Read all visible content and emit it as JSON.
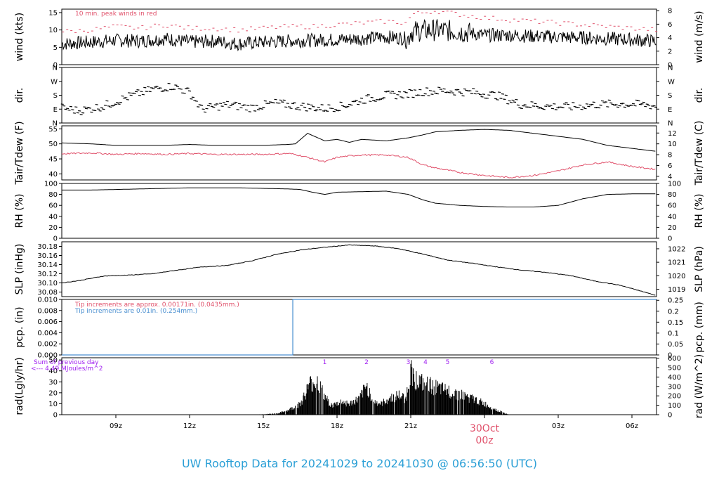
{
  "title": "UW Rooftop Data for 20241029  to  20241030 @ 06:56:50  (UTC)",
  "colors": {
    "title": "#2a9fd6",
    "red": "#e0506a",
    "blue": "#4a8fd0",
    "purple": "#a020f0",
    "black": "#000000"
  },
  "x_axis": {
    "range_hours": [
      6.8,
      31.0
    ],
    "ticks": [
      {
        "h": 9,
        "label": "09z"
      },
      {
        "h": 12,
        "label": "12z"
      },
      {
        "h": 15,
        "label": "15z"
      },
      {
        "h": 18,
        "label": "18z"
      },
      {
        "h": 21,
        "label": "21z"
      },
      {
        "h": 24,
        "label": ""
      },
      {
        "h": 27,
        "label": "03z"
      },
      {
        "h": 30,
        "label": "06z"
      }
    ],
    "midnight_date": "30Oct",
    "midnight_hour": "00z"
  },
  "chart_data": [
    {
      "type": "line",
      "id": "wind",
      "ylabel_left": "wind (kts)",
      "ylabel_right": "wind (m/s)",
      "ylim": [
        0,
        16
      ],
      "ticks_left": [
        {
          "v": 0,
          "label": "0"
        },
        {
          "v": 5,
          "label": "5"
        },
        {
          "v": 10,
          "label": "10"
        },
        {
          "v": 15,
          "label": "15"
        }
      ],
      "ticks_right": [
        {
          "v": 0,
          "label": "0"
        },
        {
          "v": 3.888,
          "label": "2"
        },
        {
          "v": 7.776,
          "label": "4"
        },
        {
          "v": 11.664,
          "label": "6"
        },
        {
          "v": 15.552,
          "label": "8"
        }
      ],
      "annotation": "10 min. peak winds in red",
      "series": [
        {
          "style": "line",
          "x": [
            6.8,
            8,
            9,
            10,
            11,
            12,
            13,
            14,
            15,
            16,
            17,
            18,
            19,
            20,
            20.9,
            21,
            21.5,
            22,
            23,
            24,
            25,
            26,
            27,
            28,
            29,
            30,
            31
          ],
          "y": [
            6,
            6.5,
            7,
            6.8,
            7.5,
            6.5,
            6.8,
            6,
            6.5,
            6.8,
            7,
            7.2,
            7.5,
            8,
            7.5,
            9.5,
            9.8,
            10,
            9.5,
            8.5,
            8.5,
            8.2,
            8,
            7.8,
            7.5,
            7.2,
            6.8
          ]
        },
        {
          "style": "points",
          "x": [
            6.8,
            8,
            9,
            10,
            11,
            12,
            13,
            14,
            15,
            16,
            17,
            18,
            19,
            20,
            20.9,
            21,
            21.5,
            22,
            23,
            24,
            25,
            26,
            27,
            28,
            29,
            30,
            31
          ],
          "y": [
            9.5,
            10,
            11,
            10.5,
            11.5,
            10.5,
            10.5,
            10,
            10.5,
            11,
            11,
            11.5,
            12,
            12.5,
            12,
            14.5,
            15,
            15.5,
            14.5,
            13.5,
            13,
            12.5,
            12,
            11.5,
            11,
            10.5,
            10
          ]
        }
      ]
    },
    {
      "type": "scatter",
      "id": "dir",
      "ylabel_left": "dir.",
      "ylabel_right": "dir.",
      "ylim": [
        0,
        360
      ],
      "ticks_left": [
        {
          "v": 0,
          "label": "N"
        },
        {
          "v": 90,
          "label": "E"
        },
        {
          "v": 180,
          "label": "S"
        },
        {
          "v": 270,
          "label": "W"
        },
        {
          "v": 360,
          "label": "N"
        }
      ],
      "ticks_right": [
        {
          "v": 0,
          "label": "N"
        },
        {
          "v": 90,
          "label": "E"
        },
        {
          "v": 180,
          "label": "S"
        },
        {
          "v": 270,
          "label": "W"
        },
        {
          "v": 360,
          "label": "N"
        }
      ],
      "series": [
        {
          "style": "points",
          "x": [
            6.8,
            7.5,
            8.5,
            9.5,
            10.5,
            11.3,
            12,
            12.5,
            13.5,
            14.5,
            15.5,
            16.5,
            17.5,
            18.2,
            19,
            20,
            20.9,
            21.5,
            22.5,
            23.5,
            24.5,
            25.5,
            26.5,
            27.5,
            28.5,
            29.5,
            30.5,
            31
          ],
          "y": [
            100,
            80,
            110,
            170,
            220,
            240,
            200,
            90,
            120,
            100,
            130,
            110,
            95,
            110,
            150,
            180,
            190,
            205,
            210,
            200,
            180,
            120,
            110,
            105,
            120,
            125,
            120,
            110
          ]
        }
      ]
    },
    {
      "type": "line",
      "id": "temp",
      "ylabel_left": "Tair/Tdew (F)",
      "ylabel_right": "Tair/Tdew (C)",
      "ylim": [
        38,
        56
      ],
      "ticks_left": [
        {
          "v": 40,
          "label": "40"
        },
        {
          "v": 45,
          "label": "45"
        },
        {
          "v": 50,
          "label": "50"
        },
        {
          "v": 55,
          "label": "55"
        }
      ],
      "ticks_right": [
        {
          "v": 39.2,
          "label": "4"
        },
        {
          "v": 42.8,
          "label": "6"
        },
        {
          "v": 46.4,
          "label": "8"
        },
        {
          "v": 50,
          "label": "10"
        },
        {
          "v": 53.6,
          "label": "12"
        }
      ],
      "series": [
        {
          "style": "line",
          "name": "Tair",
          "x": [
            6.8,
            8,
            9,
            10,
            11,
            12,
            13,
            14,
            15,
            16,
            16.3,
            16.8,
            17.5,
            18,
            18.5,
            19,
            20,
            20.9,
            21.5,
            22,
            23,
            24,
            25,
            26,
            27,
            28,
            29,
            30,
            31
          ],
          "y": [
            50.3,
            50,
            49.5,
            49.5,
            49.5,
            49.8,
            49.5,
            49.5,
            49.5,
            49.8,
            50,
            53.5,
            51,
            51.5,
            50.5,
            51.5,
            51,
            52,
            53,
            54,
            54.5,
            54.8,
            54.5,
            53.5,
            52.5,
            51.5,
            49.5,
            48.5,
            47.5
          ]
        },
        {
          "style": "line",
          "name": "Tdew",
          "x": [
            6.8,
            8,
            9,
            10,
            11,
            12,
            13,
            14,
            15,
            16,
            16.3,
            16.8,
            17.5,
            18,
            18.5,
            19,
            20,
            20.9,
            21.5,
            22,
            23,
            24,
            25,
            26,
            27,
            28,
            29,
            30,
            31
          ],
          "y": [
            46.7,
            47,
            46.5,
            46.8,
            46.5,
            46.8,
            46.5,
            46.5,
            46.5,
            46.8,
            46.5,
            45.5,
            44,
            45.5,
            46,
            46.3,
            46.3,
            45.5,
            43,
            42,
            40.5,
            39.5,
            38.8,
            39.5,
            41,
            43,
            44,
            42.5,
            41.5
          ]
        }
      ]
    },
    {
      "type": "line",
      "id": "rh",
      "ylabel_left": "RH (%)",
      "ylabel_right": "RH (%)",
      "ylim": [
        0,
        100
      ],
      "ticks_left": [
        {
          "v": 0,
          "label": "0"
        },
        {
          "v": 20,
          "label": "20"
        },
        {
          "v": 40,
          "label": "40"
        },
        {
          "v": 60,
          "label": "60"
        },
        {
          "v": 80,
          "label": "80"
        },
        {
          "v": 100,
          "label": "100"
        }
      ],
      "ticks_right": [
        {
          "v": 0,
          "label": "0"
        },
        {
          "v": 20,
          "label": "20"
        },
        {
          "v": 40,
          "label": "40"
        },
        {
          "v": 60,
          "label": "60"
        },
        {
          "v": 80,
          "label": "80"
        },
        {
          "v": 100,
          "label": "100"
        }
      ],
      "series": [
        {
          "style": "line",
          "x": [
            6.8,
            8,
            9,
            10,
            11,
            12,
            13,
            14,
            15,
            16,
            16.5,
            17,
            17.5,
            18,
            19,
            20,
            20.9,
            21.5,
            22,
            23,
            24,
            25,
            26,
            27,
            28,
            29,
            30,
            31
          ],
          "y": [
            88,
            88,
            89,
            90,
            91,
            92,
            92,
            92,
            91,
            90,
            89,
            84,
            80,
            84,
            85,
            86,
            80,
            70,
            64,
            60,
            58,
            57,
            57,
            60,
            72,
            80,
            81,
            81
          ]
        }
      ]
    },
    {
      "type": "line",
      "id": "slp",
      "ylabel_left": "SLP (inHg)",
      "ylabel_right": "SLP (hPa)",
      "ylim": [
        30.07,
        30.19
      ],
      "ticks_left": [
        {
          "v": 30.08,
          "label": "30.08"
        },
        {
          "v": 30.1,
          "label": "30.10"
        },
        {
          "v": 30.12,
          "label": "30.12"
        },
        {
          "v": 30.14,
          "label": "30.14"
        },
        {
          "v": 30.16,
          "label": "30.16"
        },
        {
          "v": 30.18,
          "label": "30.18"
        }
      ],
      "ticks_right": [
        {
          "v": 30.0861,
          "label": "1019"
        },
        {
          "v": 30.1157,
          "label": "1020"
        },
        {
          "v": 30.1452,
          "label": "1021"
        },
        {
          "v": 30.1747,
          "label": "1022"
        }
      ],
      "series": [
        {
          "style": "line",
          "x": [
            6.8,
            7.5,
            8.5,
            9.5,
            10.5,
            11.5,
            12.5,
            13.5,
            14.5,
            15.5,
            16.5,
            17.5,
            18.5,
            19.5,
            20.5,
            21.5,
            22.5,
            23.5,
            24.5,
            25.5,
            26.5,
            27.5,
            28.5,
            29.5,
            30.5,
            31
          ],
          "y": [
            30.1,
            30.105,
            30.115,
            30.117,
            30.12,
            30.128,
            30.135,
            30.138,
            30.148,
            30.162,
            30.172,
            30.178,
            30.183,
            30.181,
            30.175,
            30.163,
            30.15,
            30.143,
            30.135,
            30.128,
            30.123,
            30.116,
            30.104,
            30.095,
            30.08,
            30.072
          ]
        }
      ]
    },
    {
      "type": "line",
      "id": "pcp",
      "ylabel_left": "pcp. (in)",
      "ylabel_right": "pcp. (mm)",
      "ylim": [
        0,
        0.01
      ],
      "ticks_left": [
        {
          "v": 0,
          "label": "0.000"
        },
        {
          "v": 0.002,
          "label": "0.002"
        },
        {
          "v": 0.004,
          "label": "0.004"
        },
        {
          "v": 0.006,
          "label": "0.006"
        },
        {
          "v": 0.008,
          "label": "0.008"
        },
        {
          "v": 0.01,
          "label": "0.010"
        }
      ],
      "ticks_right": [
        {
          "v": 0,
          "label": "0"
        },
        {
          "v": 0.001969,
          "label": "0.05"
        },
        {
          "v": 0.003937,
          "label": "0.1"
        },
        {
          "v": 0.005906,
          "label": "0.15"
        },
        {
          "v": 0.007874,
          "label": "0.2"
        },
        {
          "v": 0.009843,
          "label": "0.25"
        }
      ],
      "annotations": [
        {
          "text": "Tip increments are approx. 0.00171in. (0.0435mm.)",
          "color": "red"
        },
        {
          "text": "Tip increments are 0.01in. (0.254mm.)",
          "color": "blue"
        }
      ],
      "series": [
        {
          "style": "step",
          "x": [
            6.8,
            16.2,
            16.2,
            31
          ],
          "y": [
            0,
            0,
            0.01,
            0.01
          ]
        }
      ]
    },
    {
      "type": "area",
      "id": "rad",
      "ylabel_left": "rad(Lgly/hr)",
      "ylabel_right": "rad (W/m^2)",
      "ylim": [
        0,
        52
      ],
      "ticks_left": [
        {
          "v": 0,
          "label": "0"
        },
        {
          "v": 10,
          "label": "10"
        },
        {
          "v": 20,
          "label": "20"
        },
        {
          "v": 30,
          "label": "30"
        },
        {
          "v": 40,
          "label": "40"
        },
        {
          "v": 50,
          "label": "50"
        }
      ],
      "ticks_right": [
        {
          "v": 0,
          "label": "0"
        },
        {
          "v": 8.6,
          "label": "100"
        },
        {
          "v": 17.2,
          "label": "200"
        },
        {
          "v": 25.8,
          "label": "300"
        },
        {
          "v": 34.4,
          "label": "400"
        },
        {
          "v": 43.0,
          "label": "500"
        },
        {
          "v": 51.6,
          "label": "600"
        }
      ],
      "annotations": [
        {
          "text": "Sum of previous day",
          "color": "purple"
        },
        {
          "text": "<--- 4.49 MJoules/m^2",
          "color": "purple"
        }
      ],
      "hour_markers": [
        {
          "h": 17.5,
          "label": "1"
        },
        {
          "h": 19.2,
          "label": "2"
        },
        {
          "h": 20.9,
          "label": "3"
        },
        {
          "h": 21.6,
          "label": "4"
        },
        {
          "h": 22.5,
          "label": "5"
        },
        {
          "h": 24.3,
          "label": "6"
        }
      ],
      "series": [
        {
          "style": "area",
          "x": [
            6.8,
            14.4,
            15,
            15.6,
            16,
            16.5,
            16.9,
            17.2,
            17.5,
            17.8,
            18.2,
            18.5,
            18.9,
            19.2,
            19.5,
            19.8,
            20.1,
            20.5,
            20.8,
            21,
            21.2,
            21.5,
            21.9,
            22.3,
            22.8,
            23.3,
            23.8,
            24.3,
            24.6,
            25,
            31
          ],
          "y": [
            0,
            0,
            0.5,
            1.5,
            5,
            12,
            35,
            38,
            20,
            10,
            15,
            12,
            18,
            32,
            15,
            12,
            18,
            22,
            18,
            50,
            40,
            35,
            32,
            28,
            25,
            20,
            15,
            8,
            4,
            0,
            0
          ]
        }
      ]
    }
  ]
}
